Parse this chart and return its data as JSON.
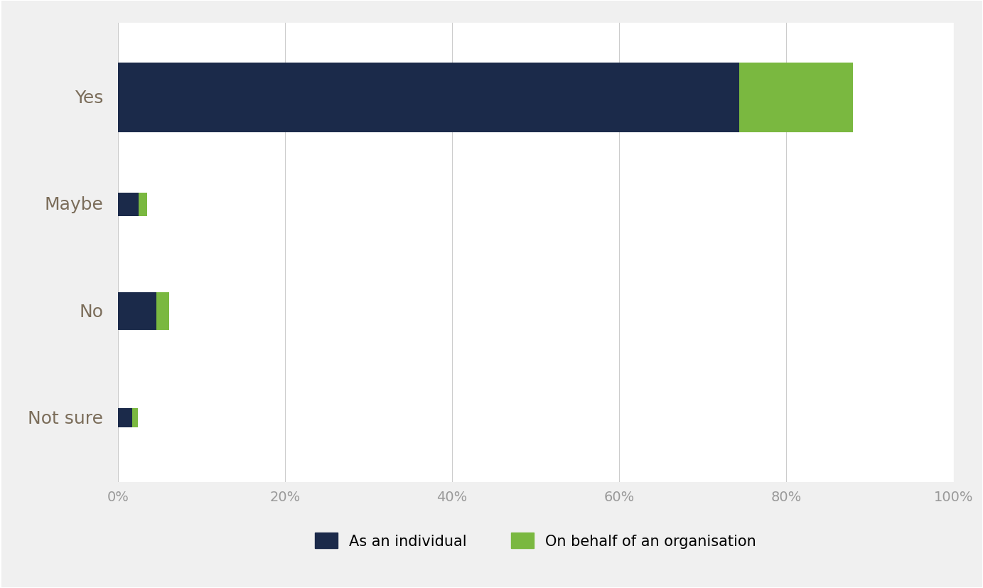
{
  "categories": [
    "Not sure",
    "No",
    "Maybe",
    "Yes"
  ],
  "individual": [
    1.663,
    4.599,
    2.446,
    74.365
  ],
  "organisation": [
    0.685,
    1.565,
    1.076,
    13.601
  ],
  "color_individual": "#1b2a4a",
  "color_organisation": "#7ab840",
  "background_color": "#ffffff",
  "outer_background": "#f0f0f0",
  "legend_individual": "As an individual",
  "legend_organisation": "On behalf of an organisation",
  "xlim": [
    0,
    100
  ],
  "xticks": [
    0,
    20,
    40,
    60,
    80,
    100
  ],
  "xtick_labels": [
    "0%",
    "20%",
    "40%",
    "60%",
    "80%",
    "100%"
  ],
  "label_color": "#7b6d5a",
  "tick_color": "#999999",
  "grid_color": "#cccccc",
  "figsize": [
    13.83,
    8.28
  ],
  "dpi": 100
}
